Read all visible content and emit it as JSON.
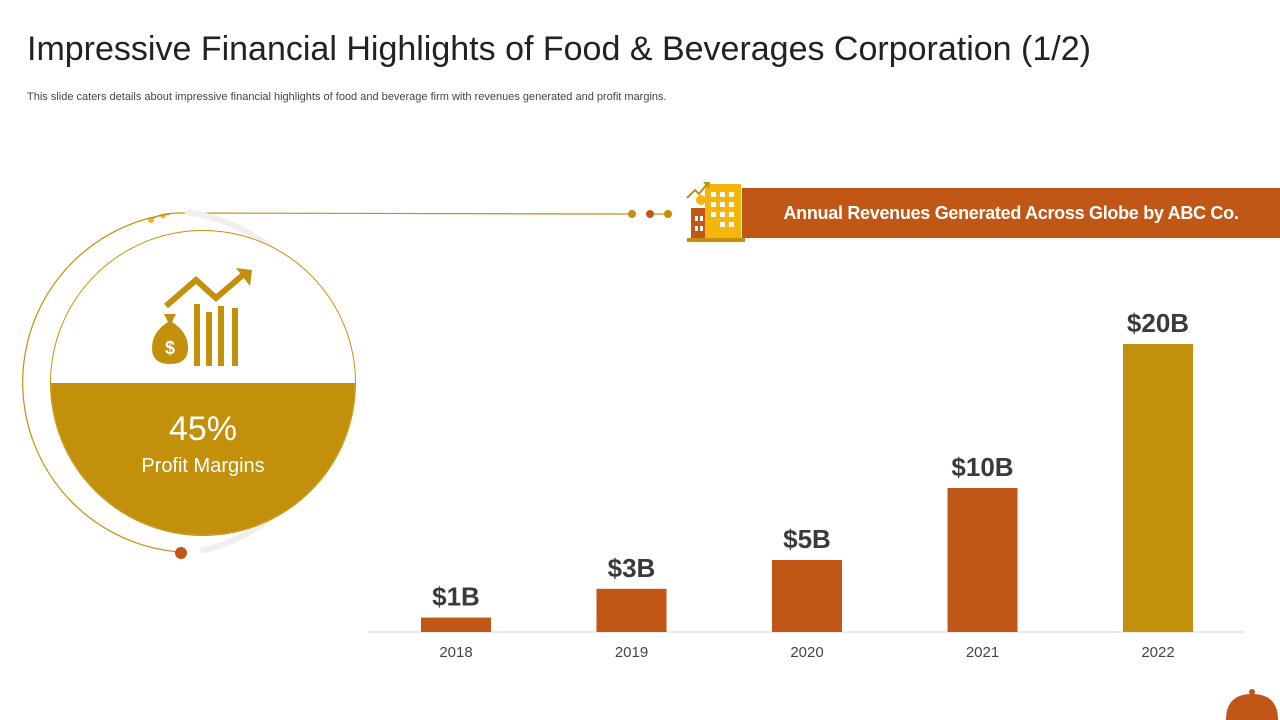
{
  "slide": {
    "title": "Impressive Financial Highlights of Food & Beverages Corporation (1/2)",
    "subtitle": "This slide caters details about impressive financial highlights of food and beverage firm with revenues generated and profit margins."
  },
  "profit": {
    "value": "45%",
    "label": "Profit Margins",
    "icon": "money-bag-growth-icon",
    "fill_fraction": 0.5
  },
  "banner": {
    "text": "Annual Revenues Generated Across Globe by ABC Co.",
    "icon": "buildings-growth-icon"
  },
  "colors": {
    "orange": "#c05717",
    "gold": "#c2900a",
    "axis": "#d9d9d9"
  },
  "chart_data": {
    "type": "bar",
    "categories": [
      "2018",
      "2019",
      "2020",
      "2021",
      "2022"
    ],
    "values": [
      1,
      3,
      5,
      10,
      20
    ],
    "data_labels": [
      "$1B",
      "$3B",
      "$5B",
      "$10B",
      "$20B"
    ],
    "title": "Annual Revenues Generated Across Globe by ABC Co.",
    "unit": "$B",
    "ylim": [
      0,
      20
    ],
    "grid": false,
    "bar_colors": [
      "#c05717",
      "#c05717",
      "#c05717",
      "#c05717",
      "#c2900a"
    ]
  }
}
